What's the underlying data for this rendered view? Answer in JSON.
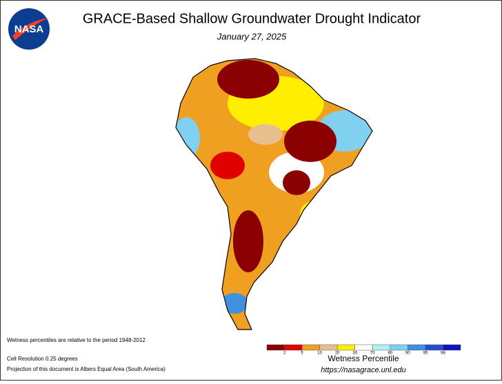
{
  "header": {
    "logo": "NASA",
    "title": "GRACE-Based Shallow Groundwater Drought Indicator",
    "date": "January 27, 2025"
  },
  "notes": [
    "Wetness percentiles are relative to the period 1948-2012",
    "Cell Resolution 0.25 degrees",
    "Projection of this document is Albers Equal Area (South America)"
  ],
  "legend": {
    "title": "Wetness Percentile",
    "ticks": [
      2,
      5,
      10,
      20,
      30,
      70,
      80,
      90,
      95,
      98
    ],
    "colors": [
      "#8b0000",
      "#e00000",
      "#f0a020",
      "#e8c090",
      "#ffee00",
      "#ffffff",
      "#b0f0f0",
      "#80d0f0",
      "#4090e0",
      "#2050d0",
      "#1010c0"
    ]
  },
  "footer": {
    "url": "https://nasagrace.unl.edu"
  }
}
